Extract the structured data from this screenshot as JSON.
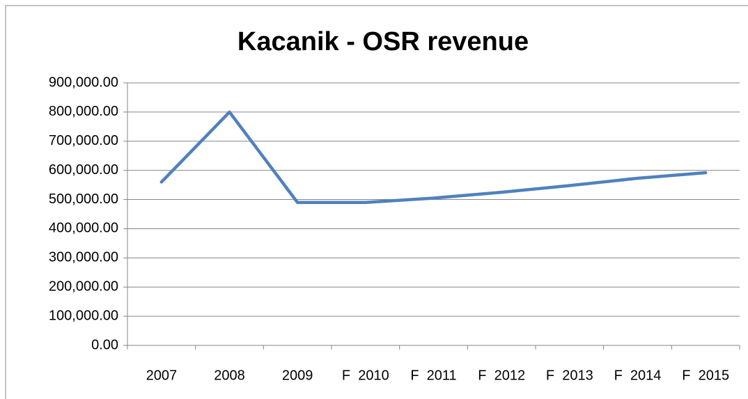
{
  "chart_data": {
    "type": "line",
    "title": "Kacanik - OSR revenue",
    "categories": [
      "2007",
      "2008",
      "2009",
      "F  2010",
      "F  2011",
      "F  2012",
      "F  2013",
      "F  2014",
      "F  2015"
    ],
    "series": [
      {
        "name": "OSR revenue",
        "color": "#4f81bd",
        "values": [
          560000,
          800000,
          490000,
          490000,
          505000,
          525000,
          548000,
          573000,
          592000
        ]
      }
    ],
    "ylim": [
      0,
      900000
    ],
    "yticks": [
      {
        "value": 0,
        "label": "0.00"
      },
      {
        "value": 100000,
        "label": "100,000.00"
      },
      {
        "value": 200000,
        "label": "200,000.00"
      },
      {
        "value": 300000,
        "label": "300,000.00"
      },
      {
        "value": 400000,
        "label": "400,000.00"
      },
      {
        "value": 500000,
        "label": "500,000.00"
      },
      {
        "value": 600000,
        "label": "600,000.00"
      },
      {
        "value": 700000,
        "label": "700,000.00"
      },
      {
        "value": 800000,
        "label": "800,000.00"
      },
      {
        "value": 900000,
        "label": "900,000.00"
      }
    ],
    "grid": true
  }
}
